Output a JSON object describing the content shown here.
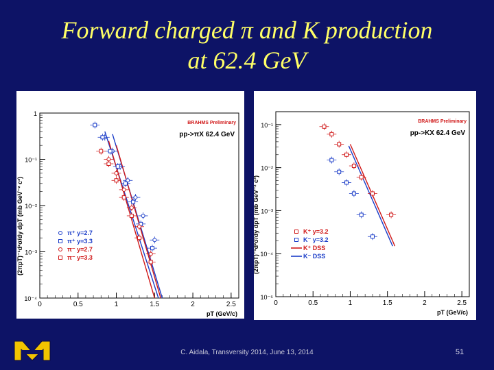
{
  "slide": {
    "title_line1": "Forward charged π and K production",
    "title_line2": "at 62.4 GeV",
    "footer": "C. Aidala, Transversity 2014, June 13, 2014",
    "page_number": "51",
    "logo_text": "MICHIGAN"
  },
  "colors": {
    "background": "#0d1366",
    "title": "#ffff66",
    "blue": "#1a3cc8",
    "red": "#d01818",
    "brahms": "#d01818"
  },
  "chart_data": [
    {
      "type": "scatter",
      "brand": "BRAHMS Preliminary",
      "title": "pp->πX 62.4 GeV",
      "ylabel": "(2πpT)⁻¹d²σ/dy dpT (mb GeV⁻² c³)",
      "xlabel": "pT (GeV/c)",
      "x_ticks": [
        "0",
        "0.5",
        "1",
        "1.5",
        "2",
        "2.5"
      ],
      "y_ticks": [
        "1",
        "10⁻¹",
        "10⁻²",
        "10⁻³",
        "10⁻⁴"
      ],
      "xlim": [
        0,
        2.6
      ],
      "ylim": [
        0.0001,
        1
      ],
      "log_y": true,
      "legend_position": "bottom-left",
      "legend": [
        "π⁺ y=2.7",
        "π⁺ y=3.3",
        "π⁻ y=2.7",
        "π⁻ y=3.3"
      ],
      "series": [
        {
          "name": "π⁺ y=2.7",
          "color": "#1a3cc8",
          "marker": "circle",
          "x": [
            0.85,
            0.95,
            1.05,
            1.15,
            1.25,
            1.35,
            1.5
          ],
          "y": [
            0.3,
            0.15,
            0.07,
            0.035,
            0.015,
            0.006,
            0.0018
          ]
        },
        {
          "name": "π⁺ y=3.3",
          "color": "#1a3cc8",
          "marker": "square",
          "x": [
            0.72,
            0.82,
            0.92,
            1.02,
            1.12,
            1.22,
            1.32,
            1.47
          ],
          "y": [
            0.55,
            0.3,
            0.15,
            0.07,
            0.03,
            0.012,
            0.004,
            0.0012
          ]
        },
        {
          "name": "π⁻ y=2.7",
          "color": "#d01818",
          "marker": "circle",
          "x": [
            0.9,
            1.0,
            1.1,
            1.2,
            1.3,
            1.45
          ],
          "y": [
            0.1,
            0.05,
            0.022,
            0.009,
            0.0035,
            0.0009
          ]
        },
        {
          "name": "π⁻ y=3.3",
          "color": "#d01818",
          "marker": "square",
          "x": [
            0.8,
            0.9,
            1.0,
            1.1,
            1.2,
            1.3,
            1.45
          ],
          "y": [
            0.15,
            0.08,
            0.035,
            0.015,
            0.006,
            0.002,
            0.0006
          ]
        }
      ],
      "curves": [
        {
          "color": "#1a3cc8",
          "x": [
            0.85,
            1.55
          ],
          "y": [
            0.4,
            0.0001
          ]
        },
        {
          "color": "#1a3cc8",
          "x": [
            0.95,
            1.6
          ],
          "y": [
            0.35,
            0.0001
          ]
        },
        {
          "color": "#d01818",
          "x": [
            0.9,
            1.5
          ],
          "y": [
            0.25,
            0.0001
          ]
        },
        {
          "color": "#d01818",
          "x": [
            1.0,
            1.58
          ],
          "y": [
            0.2,
            0.0001
          ]
        }
      ]
    },
    {
      "type": "scatter",
      "brand": "BRAHMS Preliminary",
      "title": "pp->KX 62.4 GeV",
      "ylabel": "(2πpT)⁻¹d²σ/dy dpT (mb GeV⁻² c³)",
      "xlabel": "pT (GeV/c)",
      "x_ticks": [
        "0",
        "0.5",
        "1",
        "1.5",
        "2",
        "2.5"
      ],
      "y_ticks": [
        "10⁻¹",
        "10⁻²",
        "10⁻³",
        "10⁻⁴",
        "10⁻⁵"
      ],
      "xlim": [
        0,
        2.6
      ],
      "ylim": [
        1e-05,
        0.2
      ],
      "log_y": true,
      "legend_position": "bottom-left",
      "legend": [
        "K⁺ y=3.2",
        "K⁻ y=3.2",
        "K⁺ DSS",
        "K⁻ DSS"
      ],
      "series": [
        {
          "name": "K⁺ y=3.2",
          "color": "#d01818",
          "marker": "square",
          "x": [
            0.65,
            0.75,
            0.85,
            0.95,
            1.05,
            1.15,
            1.3,
            1.55
          ],
          "y": [
            0.09,
            0.06,
            0.035,
            0.02,
            0.011,
            0.006,
            0.0025,
            0.0008
          ]
        },
        {
          "name": "K⁻ y=3.2",
          "color": "#1a3cc8",
          "marker": "square",
          "x": [
            0.75,
            0.85,
            0.95,
            1.05,
            1.15,
            1.3
          ],
          "y": [
            0.015,
            0.008,
            0.0045,
            0.0025,
            0.0008,
            0.00025
          ]
        }
      ],
      "curves": [
        {
          "color": "#d01818",
          "x": [
            1.0,
            1.6
          ],
          "y": [
            0.035,
            0.00015
          ]
        },
        {
          "color": "#1a3cc8",
          "x": [
            0.98,
            1.57
          ],
          "y": [
            0.032,
            0.00015
          ]
        }
      ]
    }
  ]
}
